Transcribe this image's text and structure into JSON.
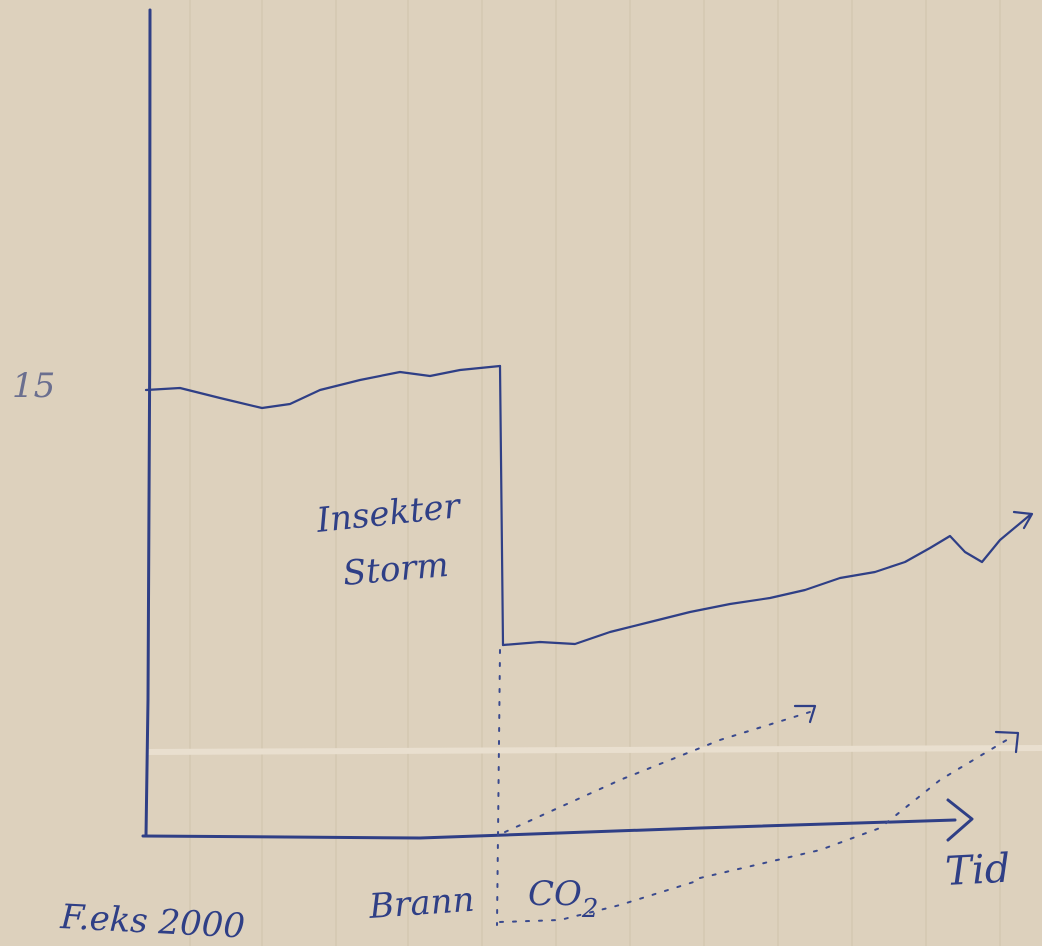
{
  "sketch": {
    "y_tick_label": "15",
    "annotation_line1": "Insekter",
    "annotation_line2": "Storm",
    "x_axis_label": "Tid",
    "x_label_start": "F.eks 2000",
    "x_label_event": "Brann",
    "x_label_co2_prefix": "CO",
    "x_label_co2_subscript": "2"
  },
  "colors": {
    "paper": "#ddd1bd",
    "ink": "#2f3f86"
  }
}
